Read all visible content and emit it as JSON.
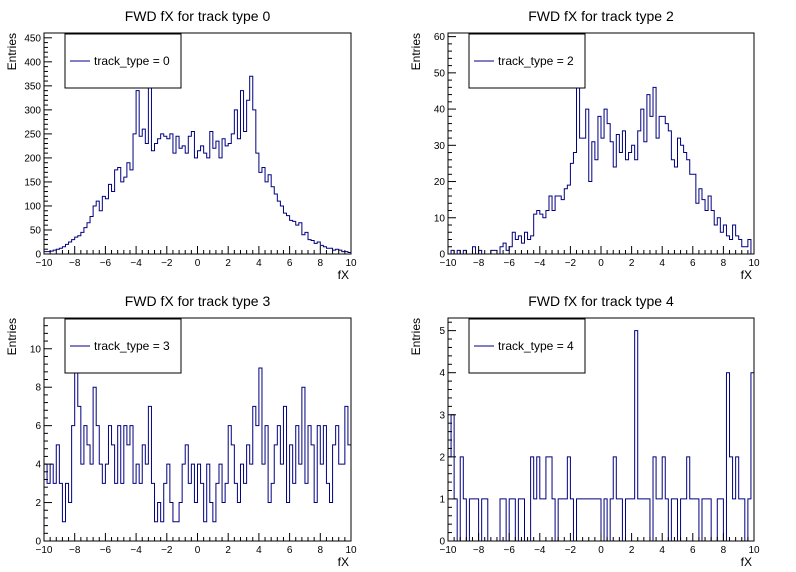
{
  "chart_data": [
    {
      "type": "histogram",
      "title": "FWD fX for track type 0",
      "xlabel": "fX",
      "ylabel": "Entries",
      "legend": "track_type = 0",
      "legend_position": "top-left",
      "xlim": [
        -10,
        10
      ],
      "ylim": [
        0,
        460
      ],
      "x_ticks": [
        -10,
        -8,
        -6,
        -4,
        -2,
        0,
        2,
        4,
        6,
        8,
        10
      ],
      "y_ticks": [
        0,
        50,
        100,
        150,
        200,
        250,
        300,
        350,
        400,
        450
      ],
      "bin_width": 0.2,
      "values": [
        5,
        5,
        6,
        8,
        10,
        12,
        15,
        20,
        25,
        30,
        35,
        38,
        45,
        55,
        65,
        78,
        100,
        110,
        90,
        120,
        115,
        145,
        130,
        175,
        180,
        150,
        160,
        190,
        175,
        250,
        340,
        245,
        260,
        230,
        360,
        215,
        230,
        240,
        250,
        245,
        240,
        250,
        210,
        245,
        220,
        225,
        210,
        245,
        255,
        200,
        215,
        225,
        210,
        200,
        255,
        220,
        235,
        200,
        240,
        225,
        230,
        250,
        300,
        240,
        340,
        255,
        320,
        370,
        300,
        210,
        170,
        180,
        150,
        165,
        140,
        125,
        110,
        100,
        85,
        80,
        70,
        68,
        60,
        65,
        40,
        45,
        30,
        28,
        22,
        25,
        18,
        15,
        12,
        12,
        8,
        10,
        8,
        5,
        5,
        3
      ]
    },
    {
      "type": "histogram",
      "title": "FWD fX for track type 2",
      "xlabel": "fX",
      "ylabel": "Entries",
      "legend": "track_type = 2",
      "legend_position": "top-left",
      "xlim": [
        -10,
        10
      ],
      "ylim": [
        0,
        61
      ],
      "x_ticks": [
        -10,
        -8,
        -6,
        -4,
        -2,
        0,
        2,
        4,
        6,
        8,
        10
      ],
      "y_ticks": [
        0,
        10,
        20,
        30,
        40,
        50,
        60
      ],
      "bin_width": 0.2,
      "values": [
        0,
        1,
        0,
        1,
        0,
        1,
        0,
        0,
        2,
        0,
        1,
        0,
        0,
        0,
        1,
        1,
        0,
        2,
        3,
        1,
        2,
        6,
        4,
        5,
        3,
        6,
        4,
        5,
        11,
        12,
        11,
        10,
        12,
        16,
        12,
        16,
        16,
        15,
        18,
        19,
        25,
        28,
        48,
        32,
        32,
        40,
        20,
        31,
        26,
        38,
        32,
        40,
        36,
        31,
        24,
        33,
        28,
        34,
        26,
        28,
        30,
        26,
        34,
        40,
        31,
        44,
        38,
        46,
        32,
        38,
        38,
        36,
        34,
        26,
        24,
        32,
        30,
        28,
        26,
        22,
        22,
        14,
        18,
        15,
        12,
        16,
        12,
        8,
        10,
        6,
        8,
        5,
        4,
        8,
        5,
        4,
        2,
        2,
        4,
        0
      ]
    },
    {
      "type": "histogram",
      "title": "FWD fX for track type 3",
      "xlabel": "fX",
      "ylabel": "Entries",
      "legend": "track_type = 3",
      "legend_position": "top-left",
      "xlim": [
        -10,
        10
      ],
      "ylim": [
        0,
        11.6
      ],
      "x_ticks": [
        -10,
        -8,
        -6,
        -4,
        -2,
        0,
        2,
        4,
        6,
        8,
        10
      ],
      "y_ticks": [
        0,
        2,
        4,
        6,
        8,
        10
      ],
      "bin_width": 0.2,
      "values": [
        4,
        3,
        4,
        3,
        5,
        3,
        1,
        3,
        2,
        6,
        9,
        7,
        4,
        6,
        5,
        4,
        8,
        6,
        4,
        3,
        4,
        6,
        5,
        3,
        6,
        3,
        6,
        5,
        6,
        3,
        4,
        3,
        5,
        4,
        7,
        3,
        1,
        2,
        1,
        3,
        4,
        2,
        1,
        1,
        2,
        4,
        5,
        3,
        4,
        2,
        4,
        3,
        1,
        4,
        2,
        1,
        3,
        4,
        2,
        3,
        6,
        5,
        3,
        2,
        4,
        3,
        5,
        4,
        7,
        6,
        9,
        4,
        6,
        2,
        3,
        5,
        6,
        4,
        7,
        2,
        5,
        3,
        6,
        4,
        8,
        3,
        6,
        5,
        2,
        6,
        4,
        6,
        3,
        2,
        5,
        6,
        4,
        4,
        7,
        5
      ]
    },
    {
      "type": "histogram",
      "title": "FWD fX for track type 4",
      "xlabel": "fX",
      "ylabel": "Entries",
      "legend": "track_type = 4",
      "legend_position": "top-left",
      "xlim": [
        -10,
        10
      ],
      "ylim": [
        0,
        5.3
      ],
      "x_ticks": [
        -10,
        -8,
        -6,
        -4,
        -2,
        0,
        2,
        4,
        6,
        8,
        10
      ],
      "y_ticks": [
        0,
        1,
        2,
        3,
        4,
        5
      ],
      "bin_width": 0.2,
      "values": [
        2,
        3,
        1,
        0,
        2,
        1,
        0,
        1,
        1,
        1,
        0,
        1,
        1,
        0,
        0,
        0,
        0,
        1,
        1,
        0,
        1,
        1,
        0,
        1,
        1,
        0,
        0,
        2,
        1,
        2,
        1,
        1,
        2,
        2,
        1,
        0,
        1,
        1,
        1,
        2,
        1,
        0,
        1,
        1,
        1,
        1,
        1,
        1,
        1,
        1,
        0,
        1,
        0,
        1,
        2,
        1,
        1,
        0,
        1,
        1,
        1,
        5,
        1,
        1,
        1,
        1,
        0,
        2,
        1,
        1,
        2,
        1,
        0,
        1,
        1,
        0,
        1,
        1,
        2,
        1,
        1,
        1,
        0,
        1,
        1,
        1,
        0,
        0,
        1,
        1,
        0,
        4,
        2,
        1,
        2,
        1,
        1,
        0,
        1,
        4
      ]
    }
  ],
  "style": {
    "line_color": "#000080",
    "frame_color": "#000000",
    "background": "#ffffff"
  }
}
